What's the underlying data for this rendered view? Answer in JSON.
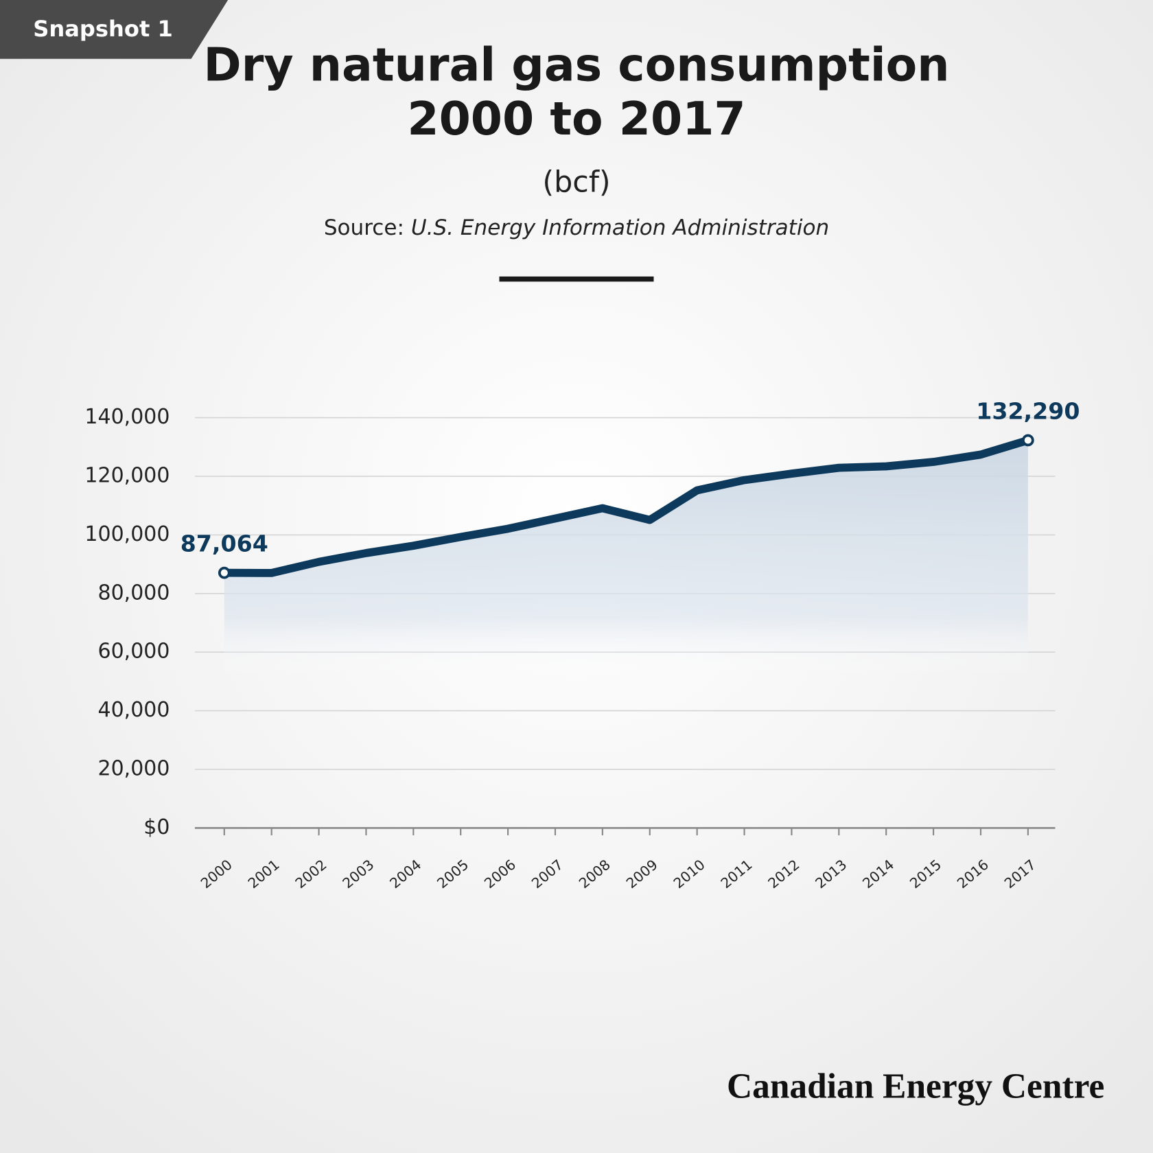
{
  "badge": "Snapshot 1",
  "brand": "Canadian Energy Centre",
  "chart_data": {
    "type": "area-line",
    "title": [
      "Dry natural gas consumption",
      "2000 to 2017"
    ],
    "subtitle": "(bcf)",
    "source_label": "Source:",
    "source": "U.S. Energy Information Administration",
    "categories": [
      "2000",
      "2001",
      "2002",
      "2003",
      "2004",
      "2005",
      "2006",
      "2007",
      "2008",
      "2009",
      "2010",
      "2011",
      "2012",
      "2013",
      "2014",
      "2015",
      "2016",
      "2017"
    ],
    "values": [
      87064,
      87000,
      90800,
      93800,
      96300,
      99300,
      102100,
      105600,
      109100,
      105100,
      115200,
      118700,
      120900,
      122900,
      123400,
      124900,
      127400,
      132290
    ],
    "value_labels": [
      "87,064",
      null,
      null,
      null,
      null,
      null,
      null,
      null,
      null,
      null,
      null,
      null,
      null,
      null,
      null,
      null,
      null,
      "132,290"
    ],
    "color": "#0d3a5c",
    "ylim": [
      0,
      140000
    ],
    "yticks": [
      {
        "value": 0,
        "label": "$0"
      },
      {
        "value": 20000,
        "label": "20,000"
      },
      {
        "value": 40000,
        "label": "40,000"
      },
      {
        "value": 60000,
        "label": "60,000"
      },
      {
        "value": 80000,
        "label": "80,000"
      },
      {
        "value": 100000,
        "label": "100,000"
      },
      {
        "value": 120000,
        "label": "120,000"
      },
      {
        "value": 140000,
        "label": "140,000"
      }
    ],
    "grid": true
  }
}
